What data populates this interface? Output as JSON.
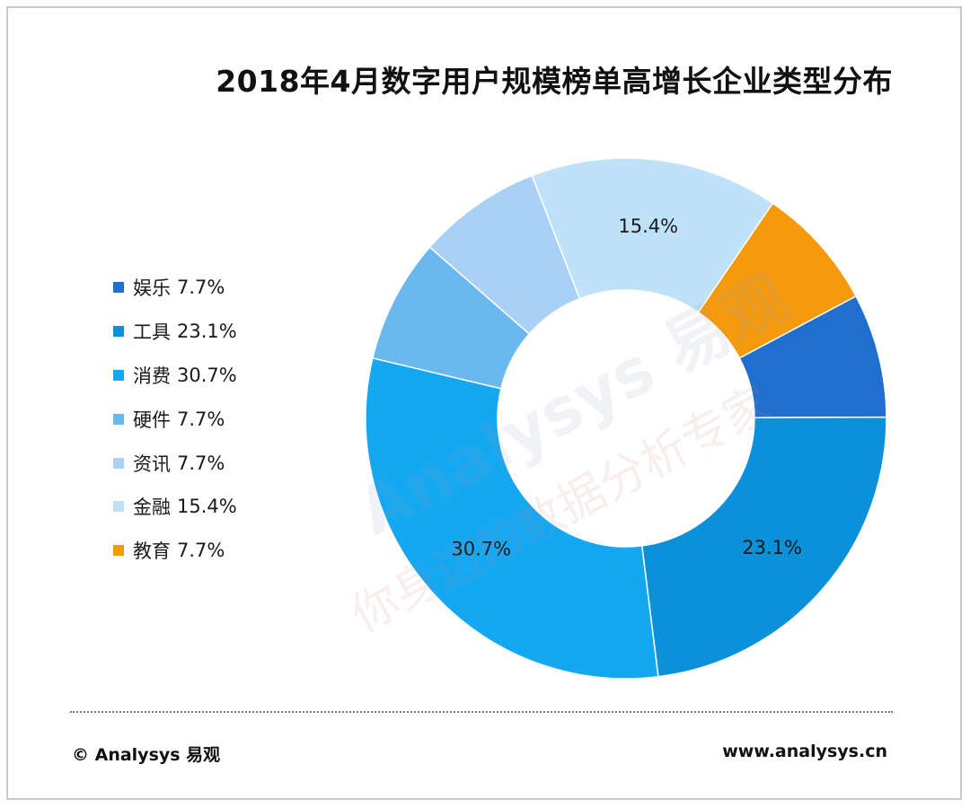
{
  "chart_data": {
    "type": "pie",
    "style": "donut",
    "title": "2018年4月数字用户规模榜单高增长企业类型分布",
    "unit": "%",
    "slices": [
      {
        "category": "娱乐",
        "value": 7.7,
        "legend_value": "7.7%",
        "label": "",
        "color": "#1f6fcf"
      },
      {
        "category": "工具",
        "value": 23.1,
        "legend_value": "23.1%",
        "label": "23.1%",
        "color": "#0a91d9"
      },
      {
        "category": "消费",
        "value": 30.7,
        "legend_value": "30.7%",
        "label": "30.7%",
        "color": "#14a7f2"
      },
      {
        "category": "硬件",
        "value": 7.7,
        "legend_value": "7.7%",
        "label": "",
        "color": "#6bb7ef"
      },
      {
        "category": "资讯",
        "value": 7.7,
        "legend_value": "7.7%",
        "label": "",
        "color": "#a8d1f5"
      },
      {
        "category": "金融",
        "value": 15.4,
        "legend_value": "15.4%",
        "label": "15.4%",
        "color": "#bfe2f8"
      },
      {
        "category": "教育",
        "value": 7.7,
        "legend_value": "7.7%",
        "label": "",
        "color": "#f59a0f"
      }
    ]
  },
  "watermark": {
    "brand_text": "Analysys 易观",
    "slogan_text": "你身边的数据分析专家"
  },
  "footer": {
    "copyright": "© Analysys 易观",
    "website": "www.analysys.cn"
  }
}
